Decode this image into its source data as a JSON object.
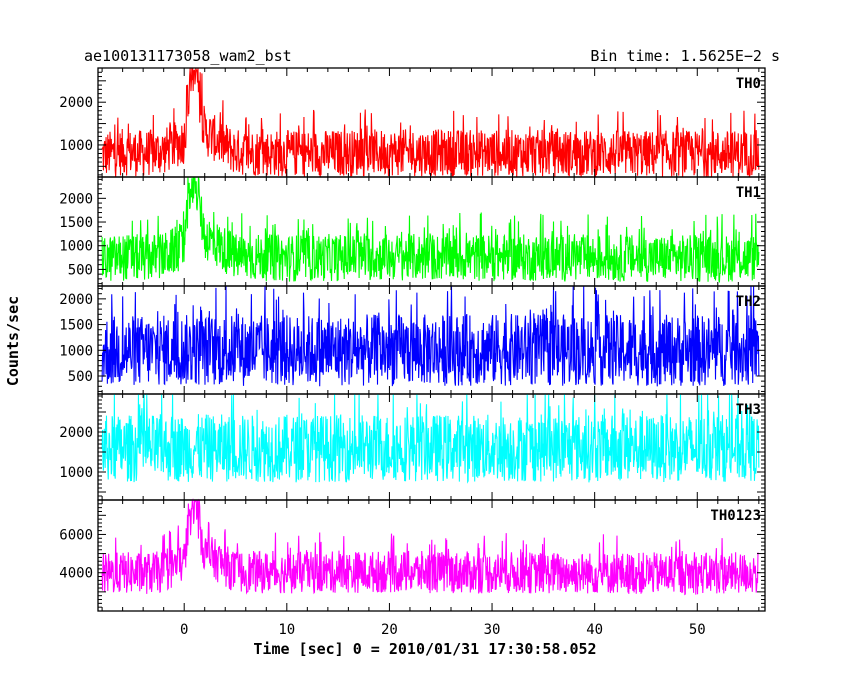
{
  "chart_data": {
    "type": "line",
    "title_left": "ae100131173058_wam2_bst",
    "title_right": "Bin time: 1.5625E−2 s",
    "xlabel": "Time [sec] 0 = 2010/01/31 17:30:58.052",
    "ylabel": "Counts/sec",
    "xlim": [
      -8.4,
      56.6
    ],
    "x_range": [
      -8,
      56
    ],
    "x_ticks": [
      "0",
      "10",
      "20",
      "30",
      "40",
      "50"
    ],
    "x_tick_values": [
      0,
      10,
      20,
      30,
      40,
      50
    ],
    "grid": false,
    "series": [
      {
        "name": "TH0",
        "color": "#ff0000",
        "ylim": [
          250,
          2800
        ],
        "y_ticks": [
          "1000",
          "2000"
        ],
        "y_tick_values": [
          1000,
          2000
        ],
        "baseline": 820,
        "spread": 550,
        "burst_peak": 2800,
        "points": [
          [
            -8,
            760
          ],
          [
            -6,
            830
          ],
          [
            -4,
            800
          ],
          [
            -2,
            850
          ],
          [
            0,
            1100
          ],
          [
            0.5,
            2300
          ],
          [
            1,
            2800
          ],
          [
            2,
            1300
          ],
          [
            5,
            830
          ],
          [
            10,
            800
          ],
          [
            20,
            820
          ],
          [
            30,
            810
          ],
          [
            40,
            800
          ],
          [
            50,
            790
          ],
          [
            56,
            800
          ]
        ]
      },
      {
        "name": "TH1",
        "color": "#00ff00",
        "ylim": [
          150,
          2450
        ],
        "y_ticks": [
          "500",
          "1000",
          "1500",
          "2000"
        ],
        "y_tick_values": [
          500,
          1000,
          1500,
          2000
        ],
        "baseline": 750,
        "spread": 500,
        "burst_peak": 2450,
        "points": [
          [
            -8,
            700
          ],
          [
            -6,
            760
          ],
          [
            -4,
            740
          ],
          [
            -2,
            780
          ],
          [
            0,
            1000
          ],
          [
            0.5,
            2000
          ],
          [
            1,
            2450
          ],
          [
            2,
            1200
          ],
          [
            5,
            760
          ],
          [
            10,
            740
          ],
          [
            20,
            760
          ],
          [
            30,
            750
          ],
          [
            40,
            740
          ],
          [
            50,
            730
          ],
          [
            56,
            740
          ]
        ]
      },
      {
        "name": "TH2",
        "color": "#0000ff",
        "ylim": [
          150,
          2250
        ],
        "y_ticks": [
          "500",
          "1000",
          "1500",
          "2000"
        ],
        "y_tick_values": [
          500,
          1000,
          1500,
          2000
        ],
        "baseline": 1000,
        "spread": 700,
        "burst_peak": 0,
        "points": [
          [
            -8,
            980
          ],
          [
            0,
            1000
          ],
          [
            10,
            990
          ],
          [
            20,
            1000
          ],
          [
            30,
            1010
          ],
          [
            40,
            1000
          ],
          [
            50,
            990
          ],
          [
            56,
            1000
          ]
        ]
      },
      {
        "name": "TH3",
        "color": "#00ffff",
        "ylim": [
          300,
          2950
        ],
        "y_ticks": [
          "1000",
          "2000"
        ],
        "y_tick_values": [
          1000,
          2000
        ],
        "baseline": 1600,
        "spread": 850,
        "burst_peak": 0,
        "points": [
          [
            -8,
            1580
          ],
          [
            0,
            1600
          ],
          [
            10,
            1590
          ],
          [
            20,
            1610
          ],
          [
            30,
            1600
          ],
          [
            40,
            1590
          ],
          [
            50,
            1600
          ],
          [
            56,
            1600
          ]
        ]
      },
      {
        "name": "TH0123",
        "color": "#ff00ff",
        "ylim": [
          2000,
          7800
        ],
        "y_ticks": [
          "4000",
          "6000"
        ],
        "y_tick_values": [
          4000,
          6000
        ],
        "baseline": 4000,
        "spread": 1100,
        "burst_peak": 7800,
        "points": [
          [
            -8,
            3900
          ],
          [
            -6,
            4000
          ],
          [
            -4,
            3950
          ],
          [
            -2,
            4050
          ],
          [
            0,
            4600
          ],
          [
            0.5,
            6800
          ],
          [
            1,
            7800
          ],
          [
            2,
            5000
          ],
          [
            5,
            4050
          ],
          [
            10,
            4000
          ],
          [
            20,
            4050
          ],
          [
            30,
            4000
          ],
          [
            40,
            3980
          ],
          [
            50,
            3950
          ],
          [
            56,
            3980
          ]
        ]
      }
    ]
  }
}
